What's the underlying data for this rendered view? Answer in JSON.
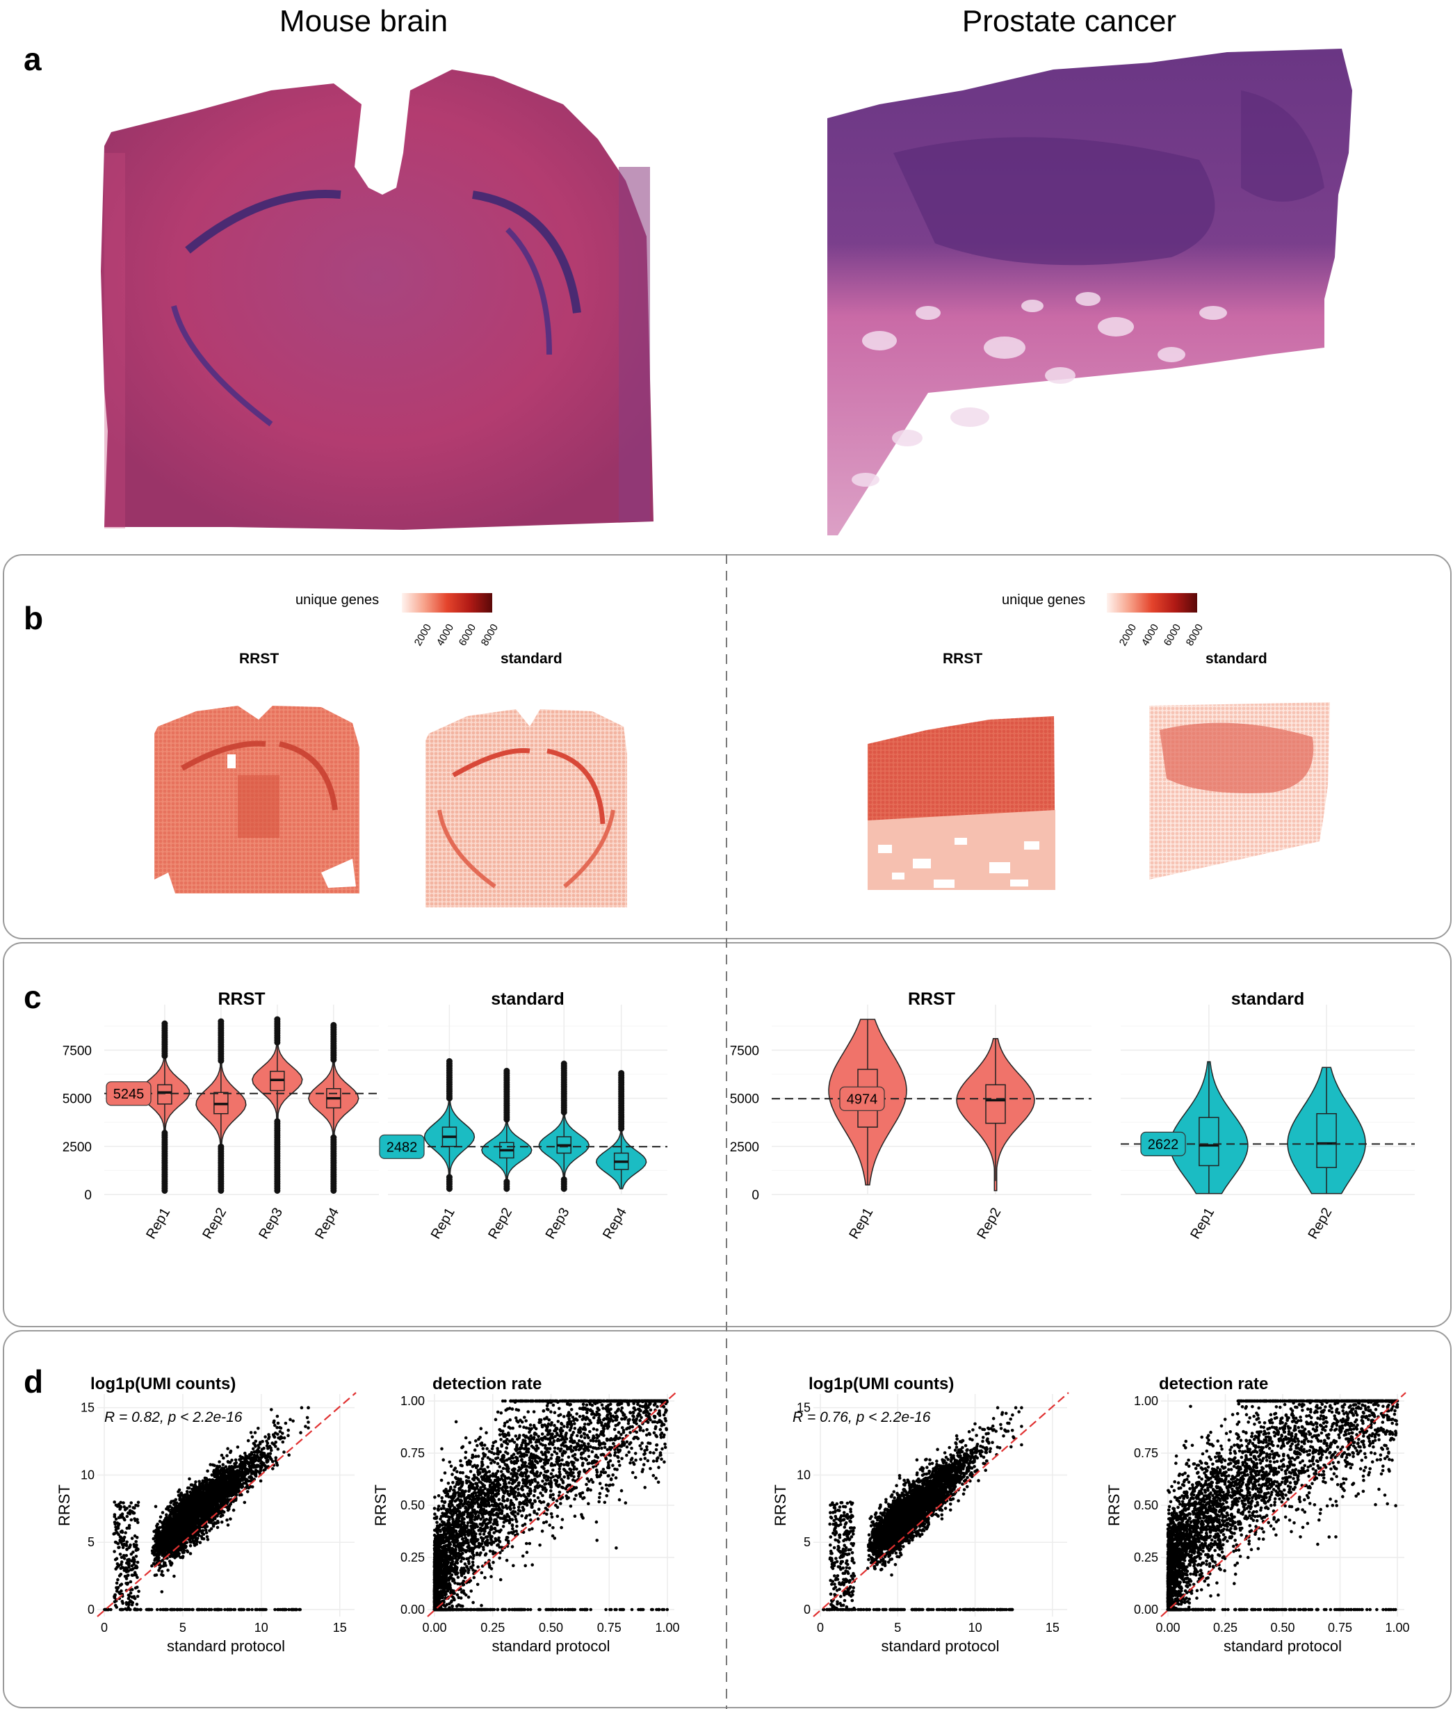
{
  "columns": {
    "left_title": "Mouse brain",
    "right_title": "Prostate cancer"
  },
  "panels": {
    "a": "a",
    "b": "b",
    "c": "c",
    "d": "d"
  },
  "colors": {
    "rrst": "#f0736a",
    "standard": "#1bbcc3",
    "he_brain": "#b23d72",
    "he_prostate_top": "#6e3a86",
    "he_prostate_bottom": "#d98cb7",
    "diag_line": "#e03030",
    "frame": "#9a9a9a"
  },
  "panel_b": {
    "legend_label": "unique genes",
    "legend_ticks": [
      "2000",
      "4000",
      "6000",
      "8000"
    ],
    "left": {
      "rrst": "RRST",
      "standard": "standard"
    },
    "right": {
      "rrst": "RRST",
      "standard": "standard"
    }
  },
  "chart_data": [
    {
      "id": "c-brain-rrst",
      "type": "violin",
      "title": "RRST",
      "categories": [
        "Rep1",
        "Rep2",
        "Rep3",
        "Rep4"
      ],
      "medians": [
        5300,
        4700,
        5950,
        5000
      ],
      "q1": [
        4700,
        4200,
        5400,
        4500
      ],
      "q3": [
        5700,
        5300,
        6400,
        5500
      ],
      "min": [
        200,
        200,
        200,
        200
      ],
      "max": [
        8900,
        9100,
        9100,
        8900
      ],
      "reference_line": 5245,
      "reference_label": "5245",
      "yticks": [
        "0",
        "2500",
        "5000",
        "7500"
      ],
      "ylim": [
        0,
        9500
      ]
    },
    {
      "id": "c-brain-standard",
      "type": "violin",
      "title": "standard",
      "categories": [
        "Rep1",
        "Rep2",
        "Rep3",
        "Rep4"
      ],
      "medians": [
        3000,
        2300,
        2550,
        1700
      ],
      "q1": [
        2500,
        1900,
        2150,
        1300
      ],
      "q3": [
        3500,
        2700,
        3000,
        2150
      ],
      "min": [
        300,
        300,
        300,
        300
      ],
      "max": [
        7000,
        6500,
        6800,
        6400
      ],
      "reference_line": 2482,
      "reference_label": "2482",
      "ylim": [
        0,
        9500
      ]
    },
    {
      "id": "c-prostate-rrst",
      "type": "violin",
      "title": "RRST",
      "categories": [
        "Rep1",
        "Rep2"
      ],
      "medians": [
        5400,
        4900
      ],
      "q1": [
        3500,
        3700
      ],
      "q3": [
        6500,
        5700
      ],
      "min": [
        500,
        200
      ],
      "max": [
        9100,
        8100
      ],
      "reference_line": 4974,
      "reference_label": "4974",
      "yticks": [
        "0",
        "2500",
        "5000",
        "7500"
      ],
      "ylim": [
        0,
        9500
      ]
    },
    {
      "id": "c-prostate-standard",
      "type": "violin",
      "title": "standard",
      "categories": [
        "Rep1",
        "Rep2"
      ],
      "medians": [
        2550,
        2650
      ],
      "q1": [
        1500,
        1400
      ],
      "q3": [
        4000,
        4200
      ],
      "min": [
        50,
        50
      ],
      "max": [
        6900,
        6600
      ],
      "reference_line": 2622,
      "reference_label": "2622",
      "ylim": [
        0,
        9500
      ]
    },
    {
      "id": "d-brain-umi",
      "type": "scatter",
      "title": "log1p(UMI counts)",
      "xlabel": "standard protocol",
      "ylabel": "RRST",
      "annotation": "R = 0.82, p < 2.2e-16",
      "xlim": [
        0,
        16
      ],
      "ylim": [
        0,
        16
      ],
      "xticks": [
        "0",
        "5",
        "10",
        "15"
      ],
      "yticks": [
        "0",
        "5",
        "10",
        "15"
      ],
      "relation": "y ≈ x + 1.5 (points above identity line)"
    },
    {
      "id": "d-brain-det",
      "type": "scatter",
      "title": "detection rate",
      "xlabel": "standard protocol",
      "ylabel": "RRST",
      "xlim": [
        0,
        1
      ],
      "ylim": [
        0,
        1
      ],
      "xticks": [
        "0.00",
        "0.25",
        "0.50",
        "0.75",
        "1.00"
      ],
      "yticks": [
        "0.00",
        "0.25",
        "0.50",
        "0.75",
        "1.00"
      ]
    },
    {
      "id": "d-prostate-umi",
      "type": "scatter",
      "title": "log1p(UMI counts)",
      "xlabel": "standard protocol",
      "ylabel": "RRST",
      "annotation": "R = 0.76, p < 2.2e-16",
      "xlim": [
        0,
        16
      ],
      "ylim": [
        0,
        16
      ],
      "xticks": [
        "0",
        "5",
        "10",
        "15"
      ],
      "yticks": [
        "0",
        "5",
        "10",
        "15"
      ]
    },
    {
      "id": "d-prostate-det",
      "type": "scatter",
      "title": "detection rate",
      "xlabel": "standard protocol",
      "ylabel": "RRST",
      "xlim": [
        0,
        1
      ],
      "ylim": [
        0,
        1
      ],
      "xticks": [
        "0.00",
        "0.25",
        "0.50",
        "0.75",
        "1.00"
      ],
      "yticks": [
        "0.00",
        "0.25",
        "0.50",
        "0.75",
        "1.00"
      ]
    }
  ]
}
